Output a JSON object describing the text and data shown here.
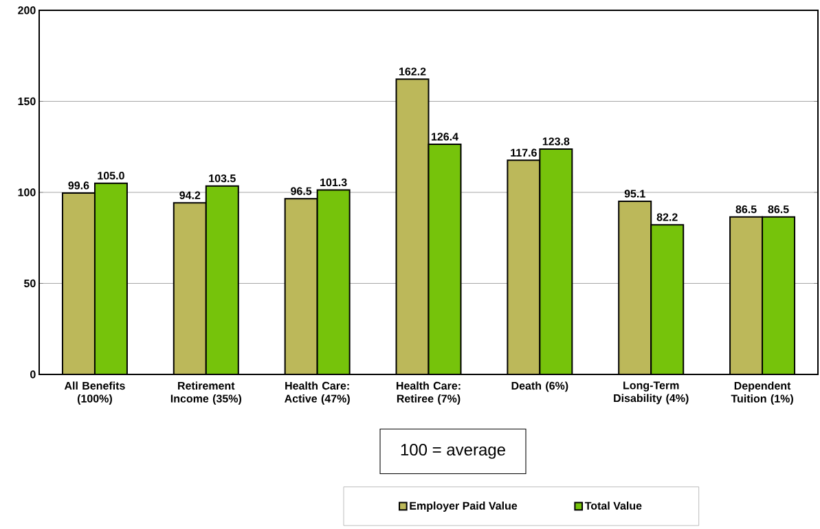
{
  "chart_data": {
    "type": "bar",
    "categories": [
      "All Benefits (100%)",
      "Retirement Income (35%)",
      "Health Care: Active (47%)",
      "Health Care: Retiree (7%)",
      "Death (6%)",
      "Long-Term Disability (4%)",
      "Dependent Tuition (1%)"
    ],
    "series": [
      {
        "name": "Employer Paid Value",
        "color": "#bcb85a",
        "values": [
          99.6,
          94.2,
          96.5,
          162.2,
          117.6,
          95.1,
          86.5
        ],
        "value_labels": [
          "99.6",
          "94.2",
          "96.5",
          "162.2",
          "117.6",
          "95.1",
          "86.5"
        ]
      },
      {
        "name": "Total Value",
        "color": "#76c30b",
        "values": [
          105.0,
          103.5,
          101.3,
          126.4,
          123.8,
          82.2,
          86.5
        ],
        "value_labels": [
          "105.0",
          "103.5",
          "101.3",
          "126.4",
          "123.8",
          "82.2",
          "86.5"
        ]
      }
    ],
    "ylim": [
      0,
      200
    ],
    "yticks": [
      0,
      50,
      100,
      150,
      200
    ],
    "grid": "y",
    "legend": "bottom",
    "annotations": [
      "100 = average"
    ]
  }
}
